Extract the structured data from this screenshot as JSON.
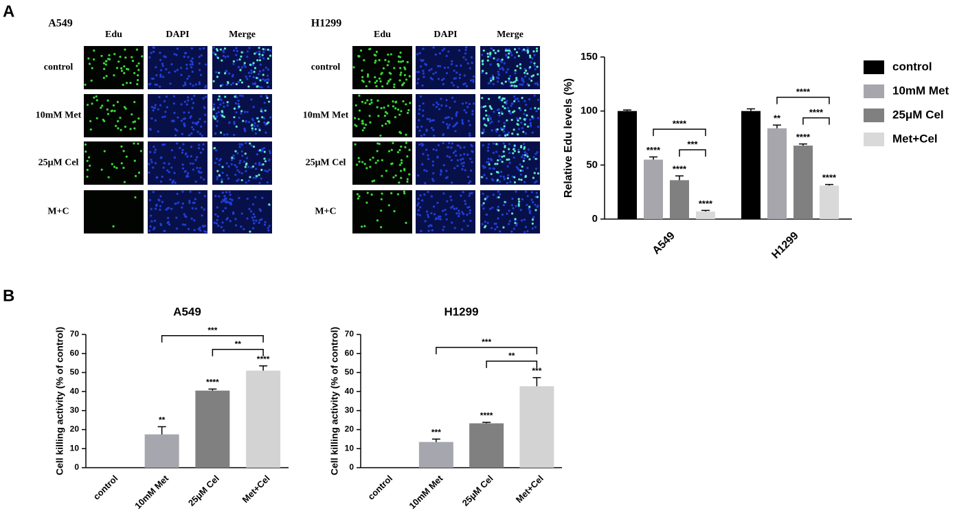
{
  "panel_labels": [
    "A",
    "B"
  ],
  "image_grids": [
    {
      "title": "A549",
      "columns": [
        "Edu",
        "DAPI",
        "Merge"
      ],
      "rows": [
        "control",
        "10mM Met",
        "25μM Cel",
        "M+C"
      ]
    },
    {
      "title": "H1299",
      "columns": [
        "Edu",
        "DAPI",
        "Merge"
      ],
      "rows": [
        "control",
        "10mM Met",
        "25μM Cel",
        "M+C"
      ]
    }
  ],
  "chart_data": [
    {
      "type": "grouped-bar",
      "y_label": "Relative Edu levels (%)",
      "categories": [
        "A549",
        "H1299"
      ],
      "series": [
        {
          "name": "control",
          "color": "#000000",
          "values": [
            100,
            100
          ],
          "errors": [
            1,
            2
          ],
          "significance": [
            null,
            null
          ]
        },
        {
          "name": "10mM Met",
          "color": "#a6a6ac",
          "values": [
            55,
            84
          ],
          "errors": [
            2.5,
            3
          ],
          "significance": [
            "****",
            "**"
          ]
        },
        {
          "name": "25μM Cel",
          "color": "#808080",
          "values": [
            36,
            68
          ],
          "errors": [
            4,
            1.5
          ],
          "significance": [
            "****",
            "****"
          ]
        },
        {
          "name": "Met+Cel",
          "color": "#d9d9d9",
          "values": [
            7,
            31
          ],
          "errors": [
            1,
            1
          ],
          "significance": [
            "****",
            "****"
          ]
        }
      ],
      "brackets": [
        {
          "category": 0,
          "between": [
            2,
            3
          ],
          "label": "***"
        },
        {
          "category": 0,
          "between": [
            1,
            3
          ],
          "label": "****"
        },
        {
          "category": 1,
          "between": [
            2,
            3
          ],
          "label": "****"
        },
        {
          "category": 1,
          "between": [
            1,
            3
          ],
          "label": "****"
        }
      ],
      "ylim": [
        0,
        150
      ],
      "yticks": [
        0,
        50,
        100,
        150
      ],
      "legend": "right"
    },
    {
      "type": "bar",
      "title": "A549",
      "y_label": "Cell killing activity (% of control)",
      "categories": [
        "control",
        "10mM Met",
        "25μM Cel",
        "Met+Cel"
      ],
      "values": [
        0,
        17.5,
        40.5,
        51
      ],
      "errors": [
        0,
        4,
        0.8,
        2.5
      ],
      "colors": [
        "#000000",
        "#a6a6ae",
        "#808080",
        "#d3d3d3"
      ],
      "significance": [
        null,
        "**",
        "****",
        "****"
      ],
      "brackets": [
        {
          "between": [
            2,
            3
          ],
          "label": "**"
        },
        {
          "between": [
            1,
            3
          ],
          "label": "***"
        }
      ],
      "ylim": [
        0,
        70
      ],
      "yticks": [
        0,
        10,
        20,
        30,
        40,
        50,
        60,
        70
      ]
    },
    {
      "type": "bar",
      "title": "H1299",
      "y_label": "Cell killing activity (% of control)",
      "categories": [
        "control",
        "10mM Met",
        "25μM Cel",
        "Met+Cel"
      ],
      "values": [
        0,
        13.5,
        23.3,
        42.8
      ],
      "errors": [
        0,
        1.5,
        0.5,
        4.5
      ],
      "colors": [
        "#000000",
        "#a6a6ae",
        "#808080",
        "#d3d3d3"
      ],
      "significance": [
        null,
        "***",
        "****",
        "***"
      ],
      "brackets": [
        {
          "between": [
            2,
            3
          ],
          "label": "**"
        },
        {
          "between": [
            1,
            3
          ],
          "label": "***"
        }
      ],
      "ylim": [
        0,
        70
      ],
      "yticks": [
        0,
        10,
        20,
        30,
        40,
        50,
        60,
        70
      ]
    }
  ]
}
